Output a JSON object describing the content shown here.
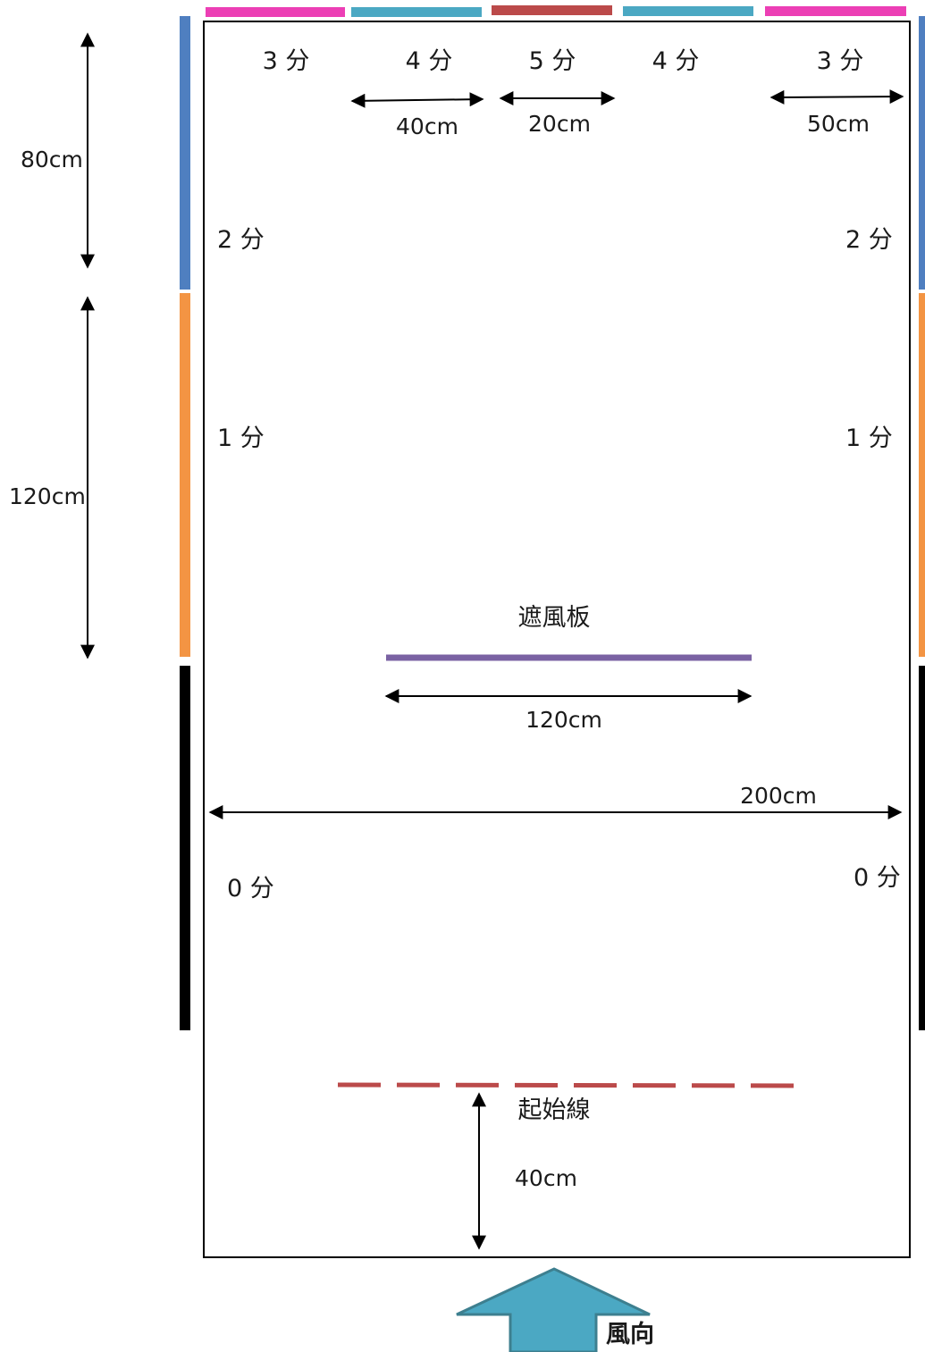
{
  "colors": {
    "three_point_bar": "#ec3fb5",
    "four_point_bar": "#4ba8c3",
    "five_point_bar": "#bb4a4a",
    "two_point_bar": "#4f7fc0",
    "one_point_bar": "#f39443",
    "zero_point_bar": "#000000",
    "windshield": "#7a62a3",
    "start_line": "#bb4a4a",
    "wind_arrow": "#4ba8c3"
  },
  "top_scores": [
    "3 分",
    "4 分",
    "5 分",
    "4 分",
    "3 分"
  ],
  "top_widths": {
    "four_zone": "40cm",
    "five_zone": "20cm",
    "three_zone": "50cm"
  },
  "side_scores": {
    "two_left": "2 分",
    "two_right": "2 分",
    "one_left": "1 分",
    "one_right": "1 分",
    "zero_left": "0 分",
    "zero_right": "0 分"
  },
  "side_lengths": {
    "two_zone": "80cm",
    "one_zone": "120cm"
  },
  "windshield": {
    "label": "遮風板",
    "width": "120cm"
  },
  "field_width": "200cm",
  "start_line": {
    "label": "起始線",
    "distance": "40cm"
  },
  "wind_direction": "風向"
}
